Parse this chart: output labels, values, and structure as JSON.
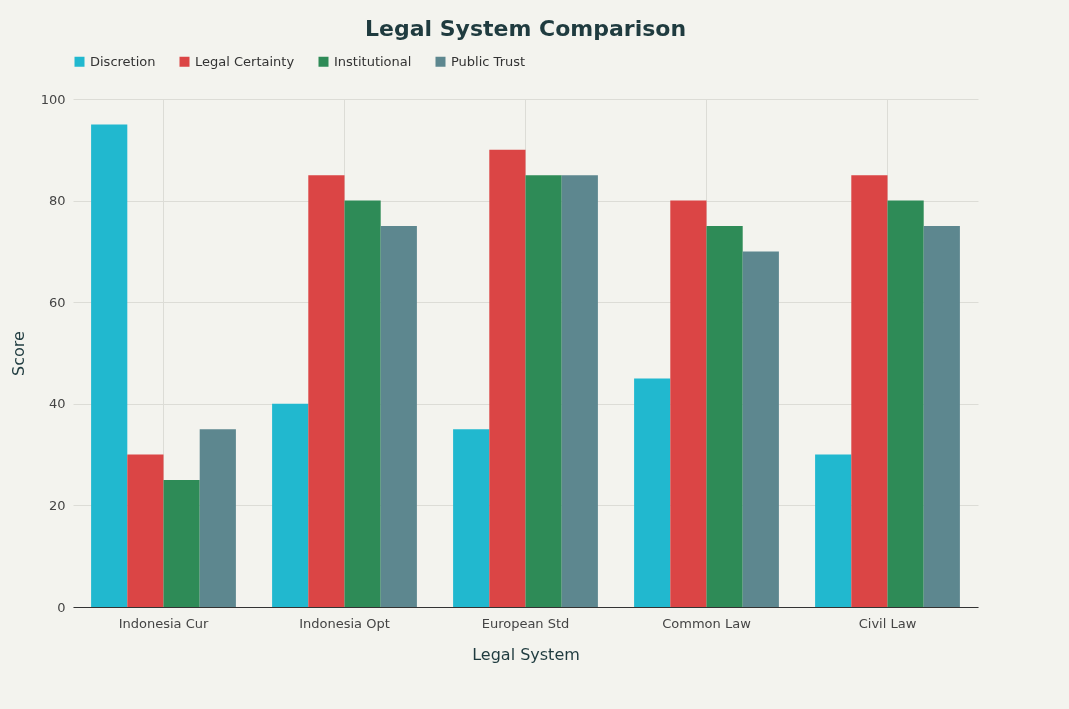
{
  "chart_data": {
    "type": "bar",
    "title": "Legal System Comparison",
    "xlabel": "Legal System",
    "ylabel": "Score",
    "categories": [
      "Indonesia Cur",
      "Indonesia Opt",
      "European Std",
      "Common Law",
      "Civil Law"
    ],
    "series": [
      {
        "name": "Discretion",
        "color": "#21b8cf",
        "values": [
          95,
          40,
          35,
          45,
          30
        ]
      },
      {
        "name": "Legal Certainty",
        "color": "#db4545",
        "values": [
          30,
          85,
          90,
          80,
          85
        ]
      },
      {
        "name": "Institutional",
        "color": "#2e8b57",
        "values": [
          25,
          80,
          85,
          75,
          80
        ]
      },
      {
        "name": "Public Trust",
        "color": "#5d878f",
        "values": [
          35,
          75,
          85,
          70,
          75
        ]
      }
    ],
    "ylim": [
      0,
      100
    ],
    "yticks": [
      0,
      20,
      40,
      60,
      80,
      100
    ],
    "grid": true,
    "legend": "top"
  }
}
